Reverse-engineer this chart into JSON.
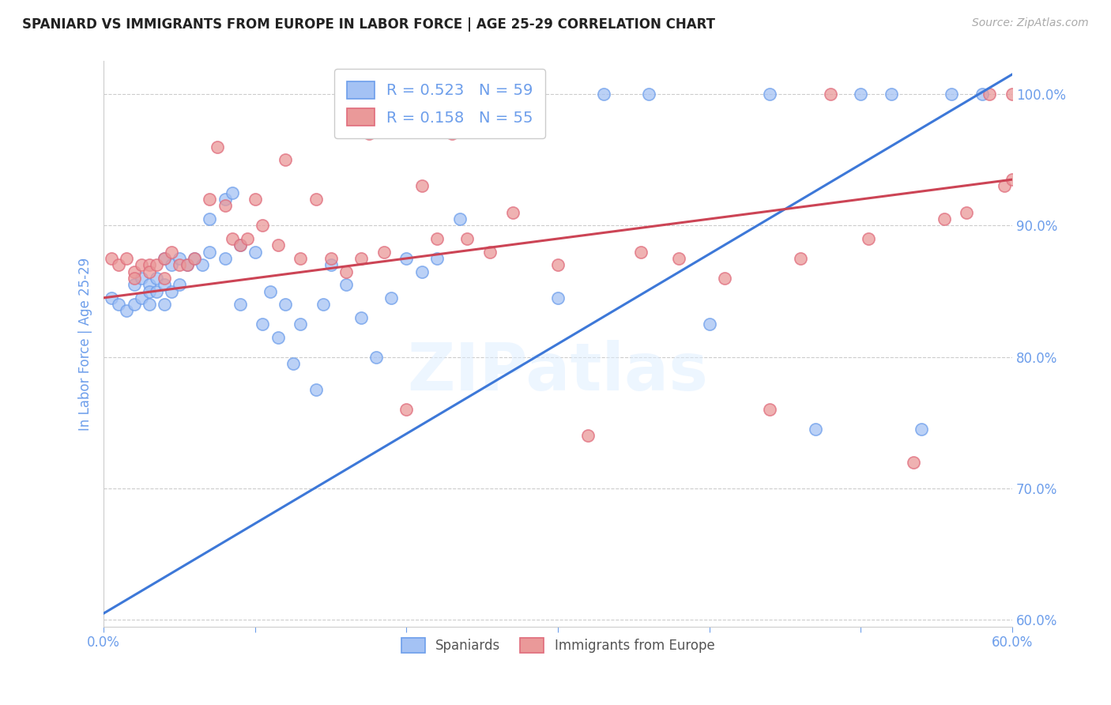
{
  "title": "SPANIARD VS IMMIGRANTS FROM EUROPE IN LABOR FORCE | AGE 25-29 CORRELATION CHART",
  "source": "Source: ZipAtlas.com",
  "ylabel": "In Labor Force | Age 25-29",
  "xlim": [
    0.0,
    0.6
  ],
  "ylim": [
    0.595,
    1.025
  ],
  "xticks": [
    0.0,
    0.1,
    0.2,
    0.3,
    0.4,
    0.5,
    0.6
  ],
  "yticks": [
    0.6,
    0.7,
    0.8,
    0.9,
    1.0
  ],
  "ytick_labels": [
    "60.0%",
    "70.0%",
    "80.0%",
    "90.0%",
    "100.0%"
  ],
  "xtick_labels": [
    "0.0%",
    "",
    "",
    "",
    "",
    "",
    "60.0%"
  ],
  "blue_color": "#a4c2f4",
  "blue_edge_color": "#6d9eeb",
  "pink_color": "#ea9999",
  "pink_edge_color": "#e06c7c",
  "blue_line_color": "#3d78d8",
  "pink_line_color": "#cc4455",
  "axis_tick_color": "#6d9eeb",
  "watermark": "ZIPatlas",
  "blue_x": [
    0.005,
    0.01,
    0.015,
    0.02,
    0.02,
    0.025,
    0.025,
    0.03,
    0.03,
    0.03,
    0.035,
    0.035,
    0.04,
    0.04,
    0.04,
    0.045,
    0.045,
    0.05,
    0.05,
    0.055,
    0.06,
    0.065,
    0.07,
    0.07,
    0.08,
    0.08,
    0.085,
    0.09,
    0.09,
    0.1,
    0.105,
    0.11,
    0.115,
    0.12,
    0.125,
    0.13,
    0.14,
    0.145,
    0.15,
    0.16,
    0.17,
    0.18,
    0.19,
    0.2,
    0.21,
    0.22,
    0.235,
    0.27,
    0.3,
    0.33,
    0.36,
    0.4,
    0.44,
    0.47,
    0.5,
    0.52,
    0.54,
    0.56,
    0.58
  ],
  "blue_y": [
    0.845,
    0.84,
    0.835,
    0.855,
    0.84,
    0.86,
    0.845,
    0.855,
    0.85,
    0.84,
    0.86,
    0.85,
    0.875,
    0.855,
    0.84,
    0.87,
    0.85,
    0.875,
    0.855,
    0.87,
    0.875,
    0.87,
    0.905,
    0.88,
    0.92,
    0.875,
    0.925,
    0.885,
    0.84,
    0.88,
    0.825,
    0.85,
    0.815,
    0.84,
    0.795,
    0.825,
    0.775,
    0.84,
    0.87,
    0.855,
    0.83,
    0.8,
    0.845,
    0.875,
    0.865,
    0.875,
    0.905,
    1.0,
    0.845,
    1.0,
    1.0,
    0.825,
    1.0,
    0.745,
    1.0,
    1.0,
    0.745,
    1.0,
    1.0
  ],
  "pink_x": [
    0.005,
    0.01,
    0.015,
    0.02,
    0.02,
    0.025,
    0.03,
    0.03,
    0.035,
    0.04,
    0.04,
    0.045,
    0.05,
    0.055,
    0.06,
    0.07,
    0.075,
    0.08,
    0.085,
    0.09,
    0.095,
    0.1,
    0.105,
    0.115,
    0.12,
    0.13,
    0.14,
    0.15,
    0.16,
    0.17,
    0.175,
    0.185,
    0.2,
    0.21,
    0.22,
    0.23,
    0.24,
    0.255,
    0.27,
    0.3,
    0.32,
    0.355,
    0.38,
    0.41,
    0.44,
    0.46,
    0.48,
    0.505,
    0.535,
    0.555,
    0.57,
    0.585,
    0.595,
    0.6,
    0.6
  ],
  "pink_y": [
    0.875,
    0.87,
    0.875,
    0.865,
    0.86,
    0.87,
    0.87,
    0.865,
    0.87,
    0.875,
    0.86,
    0.88,
    0.87,
    0.87,
    0.875,
    0.92,
    0.96,
    0.915,
    0.89,
    0.885,
    0.89,
    0.92,
    0.9,
    0.885,
    0.95,
    0.875,
    0.92,
    0.875,
    0.865,
    0.875,
    0.97,
    0.88,
    0.76,
    0.93,
    0.89,
    0.97,
    0.89,
    0.88,
    0.91,
    0.87,
    0.74,
    0.88,
    0.875,
    0.86,
    0.76,
    0.875,
    1.0,
    0.89,
    0.72,
    0.905,
    0.91,
    1.0,
    0.93,
    0.935,
    1.0
  ],
  "blue_line_x": [
    0.0,
    0.6
  ],
  "blue_line_y": [
    0.605,
    1.015
  ],
  "pink_line_x": [
    0.0,
    0.6
  ],
  "pink_line_y": [
    0.845,
    0.935
  ],
  "legend_blue_label": "R = 0.523   N = 59",
  "legend_pink_label": "R = 0.158   N = 55",
  "bottom_legend_labels": [
    "Spaniards",
    "Immigrants from Europe"
  ]
}
